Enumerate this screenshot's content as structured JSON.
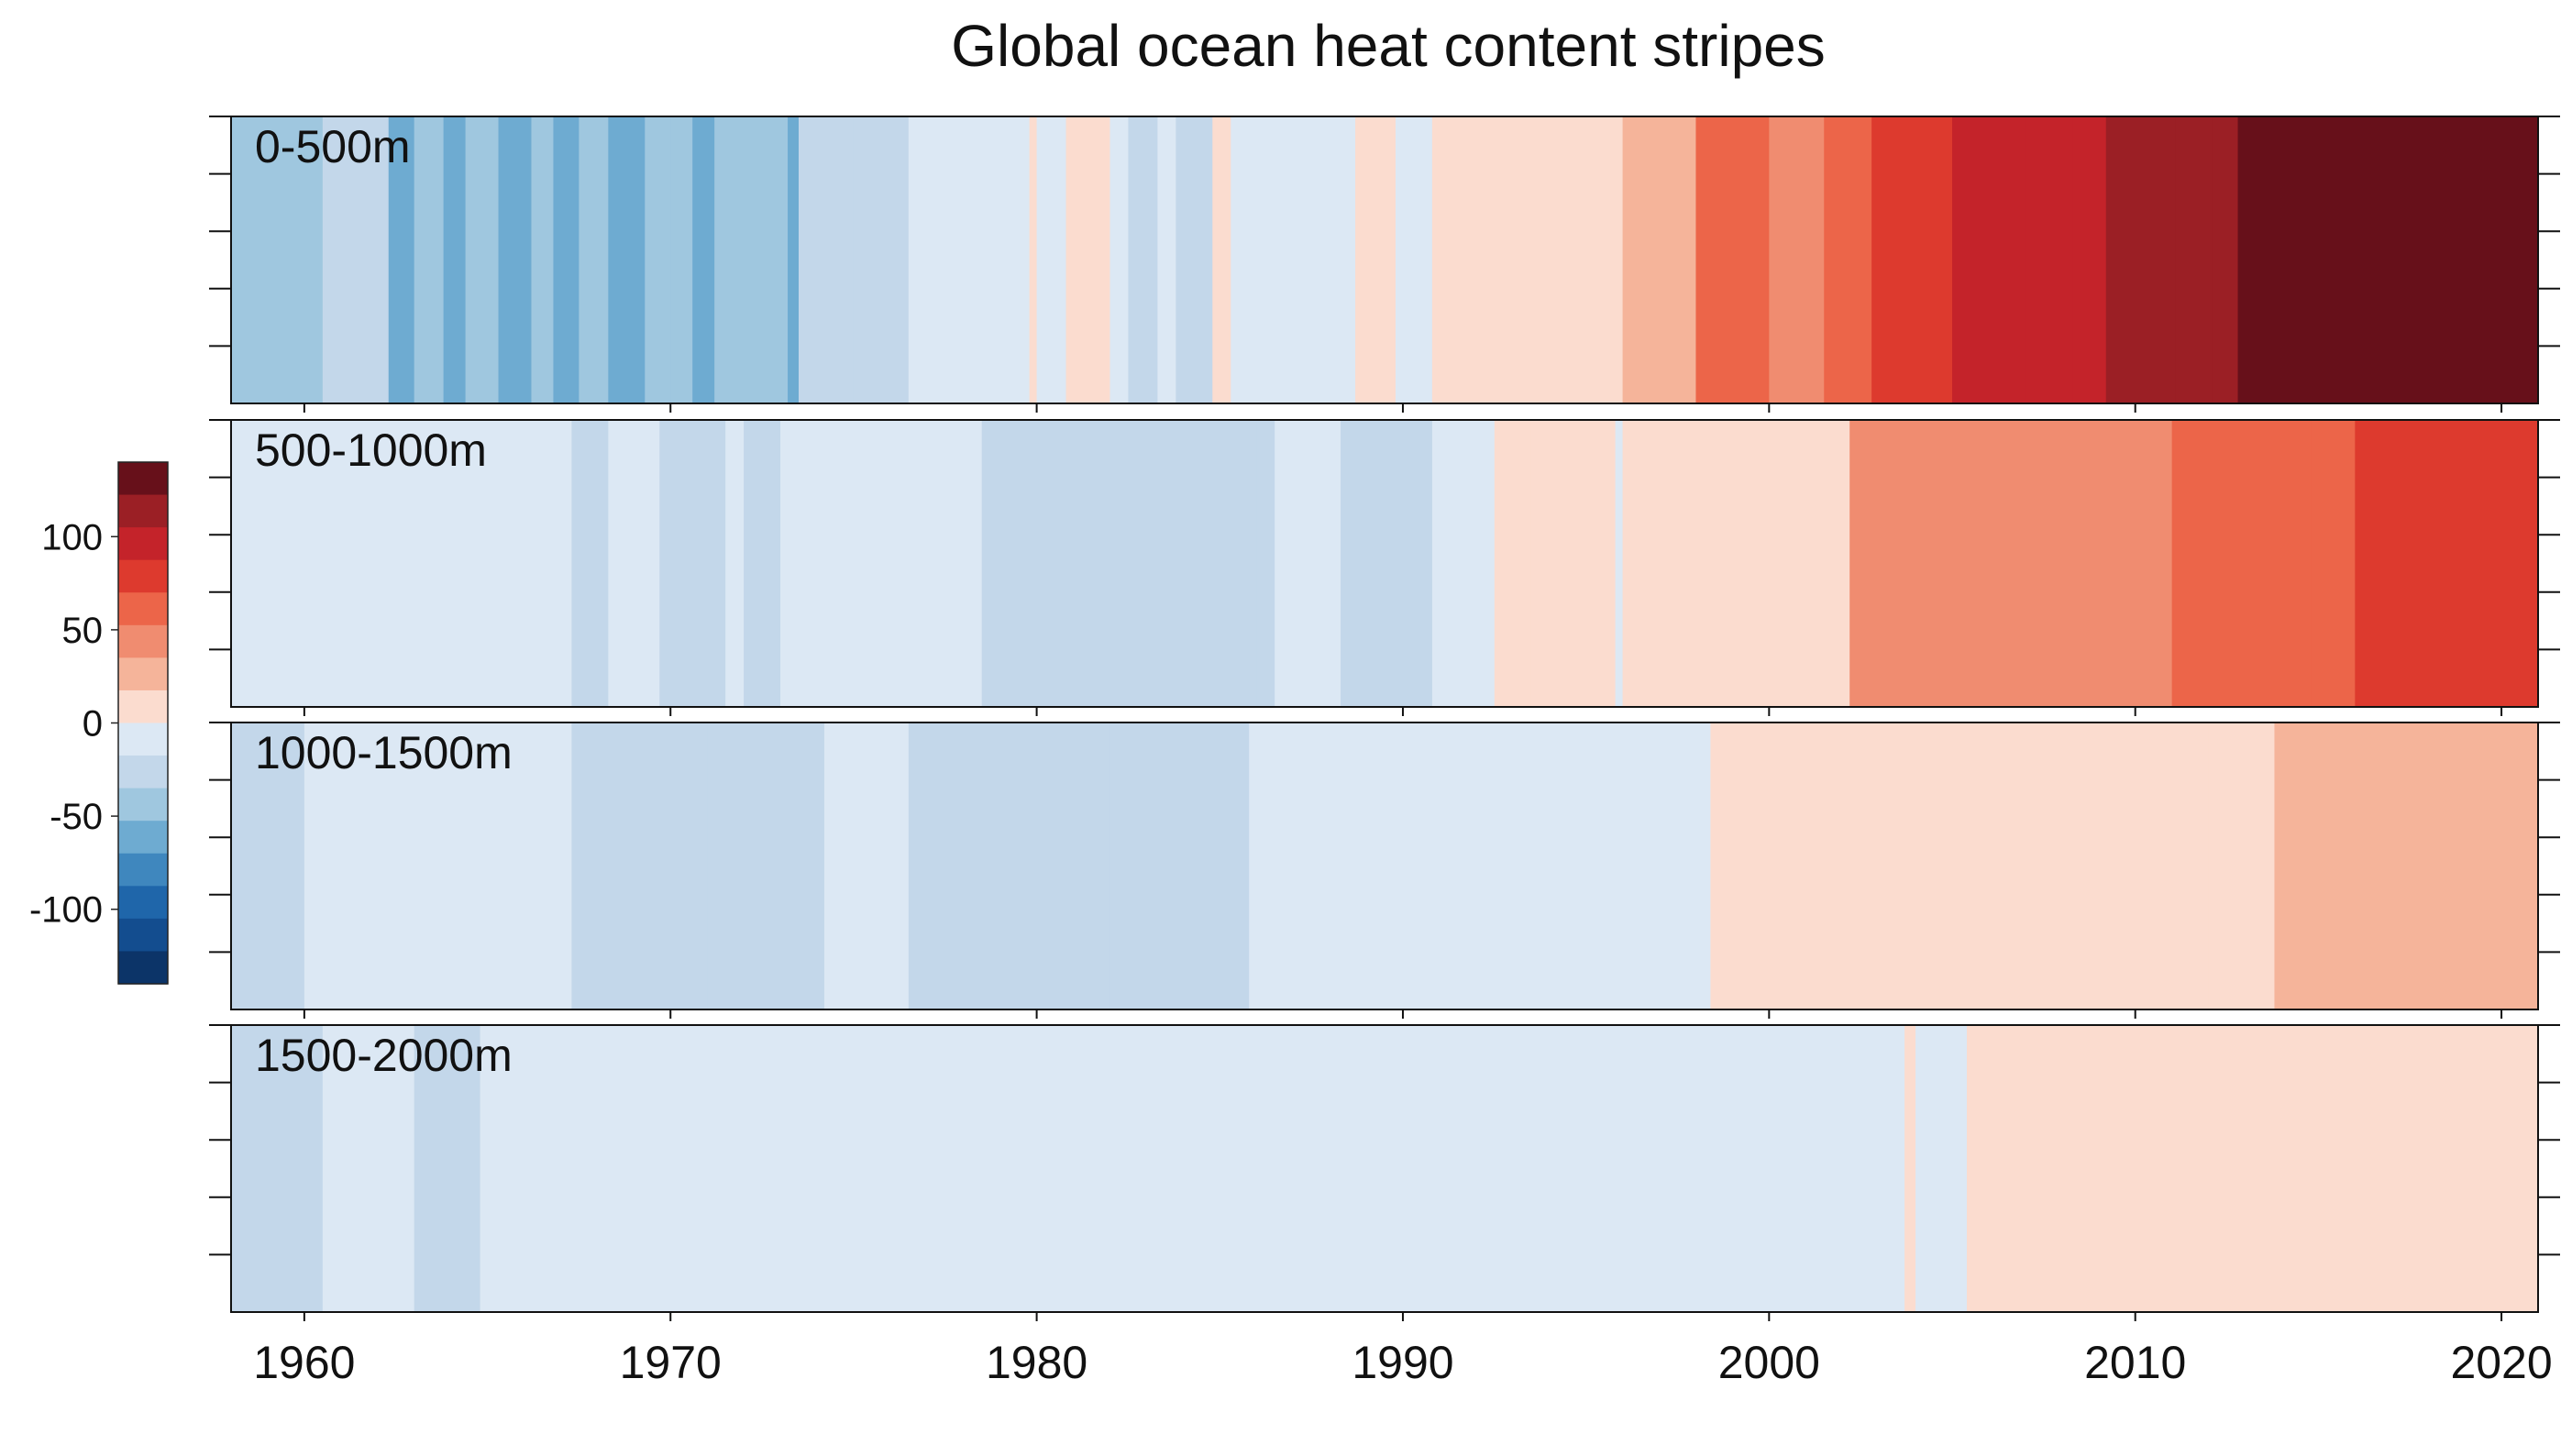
{
  "chart_data": {
    "type": "heatmap",
    "title": "Global ocean heat content stripes",
    "xlabel": "",
    "ylabel": "",
    "x_range": [
      1958,
      2021
    ],
    "x_ticks": [
      1960,
      1970,
      1980,
      1990,
      2000,
      2010,
      2020
    ],
    "x_tick_labels": [
      "1960",
      "1970",
      "1980",
      "1990",
      "2000",
      "2010",
      "2020"
    ],
    "colorbar": {
      "range": [
        -140,
        140
      ],
      "ticks": [
        100,
        50,
        0,
        -50,
        -100
      ],
      "tick_labels": [
        "100",
        "50",
        "0",
        "-50",
        "-100"
      ],
      "colors": [
        "#67101a",
        "#9b1f25",
        "#c4232a",
        "#dd3a2e",
        "#ec6549",
        "#f08c70",
        "#f5b49a",
        "#fbdccf",
        "#dce8f4",
        "#c3d7ea",
        "#9fc7df",
        "#6eabd1",
        "#3f87be",
        "#1f66aa",
        "#134d8f",
        "#0c3468"
      ],
      "bounds": [
        140,
        122.5,
        105,
        87.5,
        70,
        52.5,
        35,
        17.5,
        0,
        -17.5,
        -35,
        -52.5,
        -70,
        -87.5,
        -105,
        -122.5,
        -140
      ]
    },
    "series": [
      {
        "name": "0-500m",
        "start": 1958,
        "segments": [
          [
            1958.5,
            -40
          ],
          [
            1960.5,
            -45
          ],
          [
            1962.3,
            -28
          ],
          [
            1963.0,
            -60
          ],
          [
            1963.8,
            -45
          ],
          [
            1964.4,
            -68
          ],
          [
            1965.3,
            -52
          ],
          [
            1966.2,
            -58
          ],
          [
            1966.8,
            -40
          ],
          [
            1967.5,
            -68
          ],
          [
            1968.3,
            -45
          ],
          [
            1969.3,
            -60
          ],
          [
            1970.0,
            -45
          ],
          [
            1970.6,
            -48
          ],
          [
            1971.2,
            -60
          ],
          [
            1972.0,
            -40
          ],
          [
            1973.2,
            -50
          ],
          [
            1973.5,
            -60
          ],
          [
            1975.0,
            -25
          ],
          [
            1976.5,
            -18
          ],
          [
            1978.5,
            -10
          ],
          [
            1979.8,
            -8
          ],
          [
            1980.0,
            10
          ],
          [
            1980.3,
            -15
          ],
          [
            1980.8,
            -5
          ],
          [
            1982.0,
            8
          ],
          [
            1982.5,
            -5
          ],
          [
            1983.3,
            -20
          ],
          [
            1983.8,
            -12
          ],
          [
            1984.8,
            -25
          ],
          [
            1985.3,
            15
          ],
          [
            1987.0,
            -10
          ],
          [
            1988.7,
            -5
          ],
          [
            1989.8,
            15
          ],
          [
            1990.8,
            -10
          ],
          [
            1992.0,
            10
          ],
          [
            1994.5,
            15
          ],
          [
            1996.0,
            8
          ],
          [
            1998.0,
            32
          ],
          [
            2000.0,
            55
          ],
          [
            2001.5,
            40
          ],
          [
            2002.8,
            60
          ],
          [
            2005.0,
            82
          ],
          [
            2007.0,
            92
          ],
          [
            2008.3,
            97
          ],
          [
            2009.2,
            103
          ],
          [
            2011.1,
            110
          ],
          [
            2012.1,
            105
          ],
          [
            2012.8,
            113
          ],
          [
            2021,
            128
          ]
        ]
      },
      {
        "name": "500-1000m",
        "start": 1958,
        "segments": [
          [
            1960.5,
            -10
          ],
          [
            1961.0,
            -8
          ],
          [
            1963.5,
            -15
          ],
          [
            1967.3,
            -10
          ],
          [
            1968.3,
            -18
          ],
          [
            1969.7,
            -10
          ],
          [
            1971.5,
            -20
          ],
          [
            1972.0,
            -15
          ],
          [
            1973.0,
            -18
          ],
          [
            1975.5,
            -12
          ],
          [
            1978.5,
            -8
          ],
          [
            1981.0,
            -22
          ],
          [
            1982.5,
            -25
          ],
          [
            1984.0,
            -18
          ],
          [
            1986.0,
            -28
          ],
          [
            1986.5,
            -18
          ],
          [
            1988.3,
            -5
          ],
          [
            1990.8,
            -20
          ],
          [
            1991.5,
            -10
          ],
          [
            1992.5,
            -15
          ],
          [
            1993.5,
            5
          ],
          [
            1995.0,
            8
          ],
          [
            1995.5,
            12
          ],
          [
            1995.8,
            10
          ],
          [
            1996.0,
            -5
          ],
          [
            2002.2,
            8
          ],
          [
            2005.0,
            38
          ],
          [
            2008.5,
            40
          ],
          [
            2009.0,
            52
          ],
          [
            2011.0,
            50
          ],
          [
            2014.8,
            60
          ],
          [
            2016.0,
            65
          ],
          [
            2018.0,
            70
          ],
          [
            2019.5,
            75
          ],
          [
            2021,
            72
          ]
        ]
      },
      {
        "name": "1000-1500m",
        "start": 1958,
        "segments": [
          [
            1960.0,
            -18
          ],
          [
            1960.7,
            -10
          ],
          [
            1964.3,
            -8
          ],
          [
            1965.0,
            -15
          ],
          [
            1967.3,
            -8
          ],
          [
            1968.0,
            -18
          ],
          [
            1971.0,
            -20
          ],
          [
            1974.2,
            -22
          ],
          [
            1976.0,
            -8
          ],
          [
            1976.5,
            -12
          ],
          [
            1980.5,
            -18
          ],
          [
            1982.0,
            -20
          ],
          [
            1985.8,
            -18
          ],
          [
            1993.0,
            -8
          ],
          [
            1998.4,
            -8
          ],
          [
            2000.0,
            8
          ],
          [
            2004.0,
            5
          ],
          [
            2008.0,
            8
          ],
          [
            2012.0,
            10
          ],
          [
            2013.8,
            8
          ],
          [
            2021,
            25
          ]
        ]
      },
      {
        "name": "1500-2000m",
        "start": 1958,
        "segments": [
          [
            1960.5,
            -18
          ],
          [
            1961.0,
            -15
          ],
          [
            1963.0,
            -8
          ],
          [
            1964.8,
            -18
          ],
          [
            1965.2,
            -12
          ],
          [
            1975.8,
            -8
          ],
          [
            1976.5,
            -15
          ],
          [
            1982.0,
            -8
          ],
          [
            1990.0,
            -8
          ],
          [
            2000.0,
            -8
          ],
          [
            2003.7,
            -8
          ],
          [
            2004.0,
            10
          ],
          [
            2005.4,
            -8
          ],
          [
            2015.0,
            8
          ],
          [
            2021,
            10
          ]
        ]
      }
    ]
  }
}
